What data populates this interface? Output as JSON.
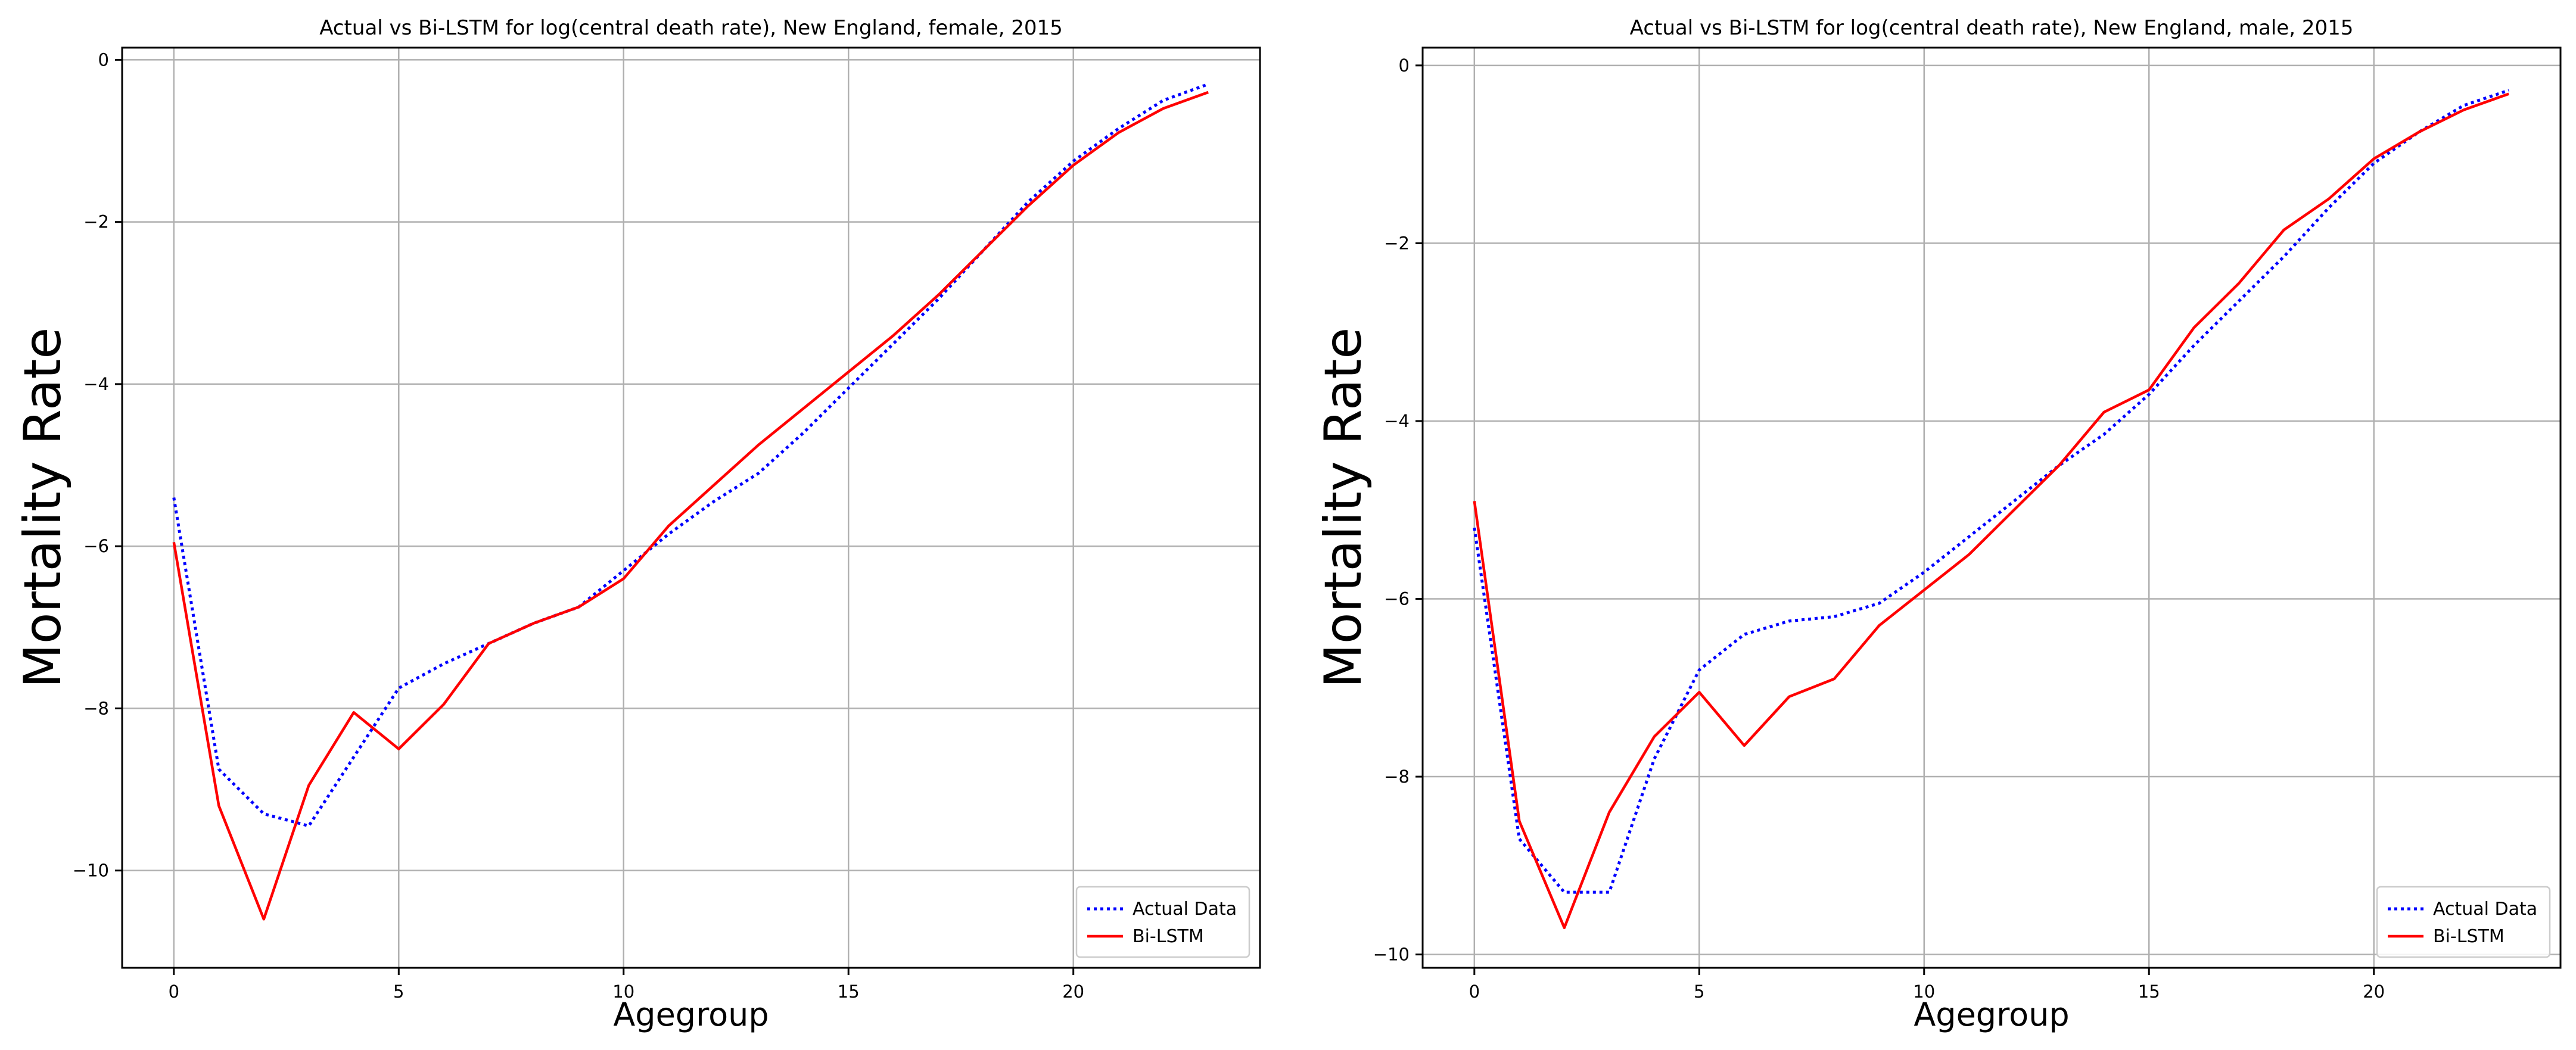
{
  "chart_data": [
    {
      "type": "line",
      "title": "Actual vs Bi-LSTM for log(central death rate), New England, female, 2015",
      "xlabel": "Agegroup",
      "ylabel": "Mortality Rate",
      "xlim": [
        -1.15,
        24.15
      ],
      "ylim": [
        -11.2,
        0.15
      ],
      "xticks": [
        0,
        5,
        10,
        15,
        20
      ],
      "yticks": [
        0,
        -2,
        -4,
        -6,
        -8,
        -10
      ],
      "xtick_labels": [
        "0",
        "5",
        "10",
        "15",
        "20"
      ],
      "ytick_labels": [
        "0",
        "−2",
        "−4",
        "−6",
        "−8",
        "−10"
      ],
      "grid": true,
      "legend_position": "bottom-right",
      "x": [
        0,
        1,
        2,
        3,
        4,
        5,
        6,
        7,
        8,
        9,
        10,
        11,
        12,
        13,
        14,
        15,
        16,
        17,
        18,
        19,
        20,
        21,
        22,
        23
      ],
      "series": [
        {
          "name": "Actual Data",
          "color": "#0000ff",
          "style": "dotted",
          "values": [
            -5.4,
            -8.75,
            -9.3,
            -9.45,
            -8.6,
            -7.75,
            -7.45,
            -7.2,
            -6.95,
            -6.75,
            -6.3,
            -5.85,
            -5.45,
            -5.1,
            -4.6,
            -4.05,
            -3.5,
            -2.95,
            -2.35,
            -1.75,
            -1.25,
            -0.85,
            -0.5,
            -0.3
          ]
        },
        {
          "name": "Bi-LSTM",
          "color": "#ff0000",
          "style": "solid",
          "values": [
            -5.95,
            -9.2,
            -10.6,
            -8.95,
            -8.05,
            -8.5,
            -7.95,
            -7.2,
            -6.95,
            -6.75,
            -6.4,
            -5.75,
            -5.25,
            -4.75,
            -4.3,
            -3.85,
            -3.4,
            -2.9,
            -2.35,
            -1.8,
            -1.3,
            -0.9,
            -0.6,
            -0.4
          ]
        }
      ]
    },
    {
      "type": "line",
      "title": "Actual vs Bi-LSTM for log(central death rate), New England, male, 2015",
      "xlabel": "Agegroup",
      "ylabel": "Mortality Rate",
      "xlim": [
        -1.15,
        24.15
      ],
      "ylim": [
        -10.15,
        0.2
      ],
      "xticks": [
        0,
        5,
        10,
        15,
        20
      ],
      "yticks": [
        0,
        -2,
        -4,
        -6,
        -8,
        -10
      ],
      "xtick_labels": [
        "0",
        "5",
        "10",
        "15",
        "20"
      ],
      "ytick_labels": [
        "0",
        "−2",
        "−4",
        "−6",
        "−8",
        "−10"
      ],
      "grid": true,
      "legend_position": "bottom-right",
      "x": [
        0,
        1,
        2,
        3,
        4,
        5,
        6,
        7,
        8,
        9,
        10,
        11,
        12,
        13,
        14,
        15,
        16,
        17,
        18,
        19,
        20,
        21,
        22,
        23
      ],
      "series": [
        {
          "name": "Actual Data",
          "color": "#0000ff",
          "style": "dotted",
          "values": [
            -5.2,
            -8.7,
            -9.3,
            -9.3,
            -7.8,
            -6.8,
            -6.4,
            -6.25,
            -6.2,
            -6.05,
            -5.7,
            -5.3,
            -4.9,
            -4.5,
            -4.15,
            -3.7,
            -3.15,
            -2.65,
            -2.15,
            -1.6,
            -1.1,
            -0.75,
            -0.45,
            -0.28
          ]
        },
        {
          "name": "Bi-LSTM",
          "color": "#ff0000",
          "style": "solid",
          "values": [
            -4.9,
            -8.5,
            -9.7,
            -8.4,
            -7.55,
            -7.05,
            -7.65,
            -7.1,
            -6.9,
            -6.3,
            -5.9,
            -5.5,
            -5.0,
            -4.5,
            -3.9,
            -3.65,
            -2.95,
            -2.45,
            -1.85,
            -1.5,
            -1.05,
            -0.75,
            -0.5,
            -0.32
          ]
        }
      ]
    }
  ]
}
